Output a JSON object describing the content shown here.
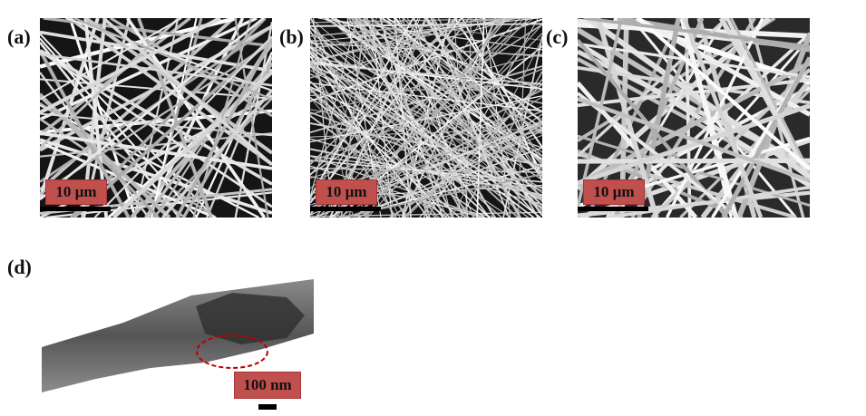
{
  "panels": [
    {
      "label": "(a)",
      "scale_label": "10 µm"
    },
    {
      "label": "(b)",
      "scale_label": "10 µm"
    },
    {
      "label": "(c)",
      "scale_label": "10 µm"
    },
    {
      "label": "(d)",
      "scale_label": "100 nm"
    }
  ],
  "colors": {
    "scale_box": "#c0504d",
    "highlight_ellipse": "#c00000"
  }
}
